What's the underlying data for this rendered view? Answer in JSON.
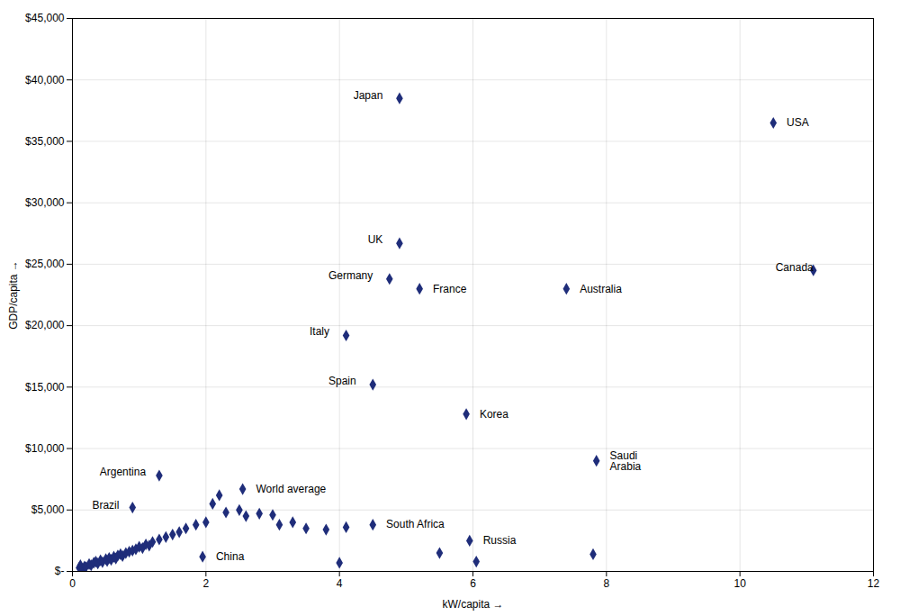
{
  "chart_data": {
    "type": "scatter",
    "xlabel": "kW/capita",
    "ylabel": "GDP/capita",
    "xlim": [
      0,
      12
    ],
    "ylim": [
      0,
      45000
    ],
    "xticks": [
      0,
      2,
      4,
      6,
      8,
      10,
      12
    ],
    "yticks": [
      {
        "value": 0,
        "label": "$-"
      },
      {
        "value": 5000,
        "label": "$5,000"
      },
      {
        "value": 10000,
        "label": "$10,000"
      },
      {
        "value": 15000,
        "label": "$15,000"
      },
      {
        "value": 20000,
        "label": "$20,000"
      },
      {
        "value": 25000,
        "label": "$25,000"
      },
      {
        "value": 30000,
        "label": "$30,000"
      },
      {
        "value": 35000,
        "label": "$35,000"
      },
      {
        "value": 40000,
        "label": "$40,000"
      },
      {
        "value": 45000,
        "label": "$45,000"
      }
    ],
    "grid": true,
    "color": "#1f2d7a",
    "marker": "diamond",
    "x": [
      0.1,
      0.12,
      0.15,
      0.18,
      0.2,
      0.25,
      0.28,
      0.32,
      0.35,
      0.38,
      0.42,
      0.45,
      0.5,
      0.52,
      0.55,
      0.58,
      0.62,
      0.65,
      0.68,
      0.72,
      0.75,
      0.8,
      0.85,
      0.9,
      0.95,
      1.0,
      1.05,
      1.1,
      1.15,
      1.2,
      1.3,
      1.4,
      1.5,
      1.6,
      1.7,
      1.85,
      2.0,
      2.1,
      2.2,
      2.3,
      2.5,
      2.6,
      2.8,
      3.0,
      3.1,
      3.3,
      3.5,
      3.8,
      4.0,
      4.1,
      5.5,
      6.05,
      7.8,
      4.9,
      10.5,
      4.9,
      4.75,
      5.2,
      7.4,
      11.1,
      4.1,
      4.5,
      5.9,
      7.85,
      1.3,
      2.55,
      0.9,
      4.5,
      5.95,
      1.95
    ],
    "values": [
      300,
      500,
      200,
      400,
      350,
      600,
      500,
      700,
      800,
      650,
      900,
      750,
      1000,
      850,
      1100,
      950,
      1200,
      1050,
      1300,
      1400,
      1250,
      1500,
      1600,
      1700,
      1800,
      2000,
      1900,
      2200,
      2100,
      2400,
      2600,
      2800,
      3000,
      3200,
      3500,
      3800,
      4000,
      5500,
      6200,
      4800,
      5000,
      4500,
      4700,
      4600,
      3800,
      4000,
      3500,
      3400,
      700,
      3600,
      1500,
      800,
      1400,
      38500,
      36500,
      26700,
      23800,
      23000,
      23000,
      24500,
      19200,
      15200,
      12800,
      9000,
      7800,
      6700,
      5200,
      3800,
      2500,
      1200
    ],
    "annotations": [
      {
        "text": "Japan",
        "x": 4.65,
        "y": 38700,
        "xy": [
          4.9,
          38500
        ]
      },
      {
        "text": "USA",
        "x": 10.7,
        "y": 36500,
        "xy": [
          10.5,
          36500
        ]
      },
      {
        "text": "UK",
        "x": 4.65,
        "y": 27000,
        "xy": [
          4.9,
          26700
        ]
      },
      {
        "text": "Germany",
        "x": 4.5,
        "y": 24100,
        "xy": [
          4.75,
          23800
        ]
      },
      {
        "text": "France",
        "x": 5.4,
        "y": 23000,
        "xy": [
          5.2,
          23000
        ]
      },
      {
        "text": "Australia",
        "x": 7.6,
        "y": 23000,
        "xy": [
          7.4,
          23000
        ]
      },
      {
        "text": "Canada",
        "x": 11.1,
        "y": 24700,
        "xy": [
          11.1,
          24500
        ]
      },
      {
        "text": "Italy",
        "x": 3.85,
        "y": 19500,
        "xy": [
          4.1,
          19200
        ]
      },
      {
        "text": "Spain",
        "x": 4.25,
        "y": 15500,
        "xy": [
          4.5,
          15200
        ]
      },
      {
        "text": "Korea",
        "x": 6.1,
        "y": 12800,
        "xy": [
          5.9,
          12800
        ]
      },
      {
        "text": "Saudi\nArabia",
        "x": 8.05,
        "y": 9000,
        "xy": [
          7.85,
          9000
        ]
      },
      {
        "text": "Argentina",
        "x": 1.1,
        "y": 8100,
        "xy": [
          1.3,
          7800
        ]
      },
      {
        "text": "World average",
        "x": 2.75,
        "y": 6700,
        "xy": [
          2.55,
          6700
        ]
      },
      {
        "text": "Brazil",
        "x": 0.7,
        "y": 5400,
        "xy": [
          0.9,
          5200
        ]
      },
      {
        "text": "South Africa",
        "x": 4.7,
        "y": 3800,
        "xy": [
          4.5,
          3800
        ]
      },
      {
        "text": "Russia",
        "x": 6.15,
        "y": 2500,
        "xy": [
          5.95,
          2500
        ]
      },
      {
        "text": "China",
        "x": 2.15,
        "y": 1200,
        "xy": [
          1.95,
          1200
        ]
      }
    ]
  }
}
